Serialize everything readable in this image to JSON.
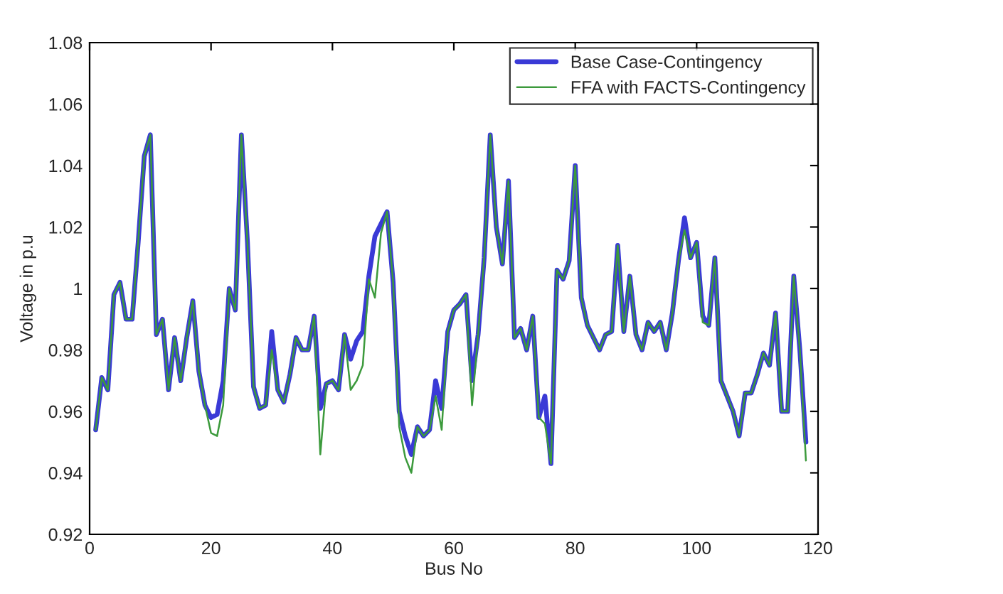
{
  "chart_data": {
    "type": "line",
    "xlabel": "Bus No",
    "ylabel": "Voltage in p.u",
    "x": [
      1,
      2,
      3,
      4,
      5,
      6,
      7,
      8,
      9,
      10,
      11,
      12,
      13,
      14,
      15,
      16,
      17,
      18,
      19,
      20,
      21,
      22,
      23,
      24,
      25,
      26,
      27,
      28,
      29,
      30,
      31,
      32,
      33,
      34,
      35,
      36,
      37,
      38,
      39,
      40,
      41,
      42,
      43,
      44,
      45,
      46,
      47,
      48,
      49,
      50,
      51,
      52,
      53,
      54,
      55,
      56,
      57,
      58,
      59,
      60,
      61,
      62,
      63,
      64,
      65,
      66,
      67,
      68,
      69,
      70,
      71,
      72,
      73,
      74,
      75,
      76,
      77,
      78,
      79,
      80,
      81,
      82,
      83,
      84,
      85,
      86,
      87,
      88,
      89,
      90,
      91,
      92,
      93,
      94,
      95,
      96,
      97,
      98,
      99,
      100,
      101,
      102,
      103,
      104,
      105,
      106,
      107,
      108,
      109,
      110,
      111,
      112,
      113,
      114,
      115,
      116,
      117,
      118
    ],
    "series": [
      {
        "name": "Base Case-Contingency",
        "color": "#3a3ad6",
        "values": [
          0.954,
          0.971,
          0.967,
          0.998,
          1.002,
          0.99,
          0.99,
          1.015,
          1.043,
          1.05,
          0.985,
          0.99,
          0.967,
          0.984,
          0.97,
          0.984,
          0.996,
          0.973,
          0.962,
          0.958,
          0.959,
          0.97,
          1.0,
          0.993,
          1.05,
          1.015,
          0.968,
          0.961,
          0.962,
          0.986,
          0.967,
          0.963,
          0.972,
          0.984,
          0.98,
          0.98,
          0.991,
          0.961,
          0.969,
          0.97,
          0.967,
          0.985,
          0.977,
          0.983,
          0.986,
          1.004,
          1.017,
          1.021,
          1.025,
          1.002,
          0.96,
          0.952,
          0.946,
          0.955,
          0.952,
          0.954,
          0.97,
          0.961,
          0.986,
          0.993,
          0.995,
          0.998,
          0.97,
          0.985,
          1.01,
          1.05,
          1.02,
          1.008,
          1.035,
          0.984,
          0.987,
          0.98,
          0.991,
          0.958,
          0.965,
          0.943,
          1.006,
          1.003,
          1.009,
          1.04,
          0.997,
          0.988,
          0.984,
          0.98,
          0.985,
          0.986,
          1.014,
          0.986,
          1.004,
          0.985,
          0.98,
          0.989,
          0.986,
          0.989,
          0.98,
          0.992,
          1.009,
          1.023,
          1.01,
          1.015,
          0.991,
          0.988,
          1.01,
          0.97,
          0.965,
          0.96,
          0.952,
          0.966,
          0.966,
          0.972,
          0.979,
          0.975,
          0.992,
          0.96,
          0.96,
          1.004,
          0.98,
          0.95
        ]
      },
      {
        "name": "FFA with FACTS-Contingency",
        "color": "#3c9a3c",
        "values": [
          0.954,
          0.971,
          0.967,
          0.998,
          1.002,
          0.99,
          0.99,
          1.015,
          1.043,
          1.05,
          0.985,
          0.99,
          0.967,
          0.984,
          0.97,
          0.984,
          0.996,
          0.973,
          0.962,
          0.953,
          0.952,
          0.962,
          1.0,
          0.993,
          1.05,
          1.015,
          0.968,
          0.961,
          0.962,
          0.98,
          0.967,
          0.963,
          0.972,
          0.984,
          0.98,
          0.98,
          0.991,
          0.946,
          0.969,
          0.97,
          0.967,
          0.985,
          0.967,
          0.97,
          0.975,
          1.003,
          0.997,
          1.018,
          1.025,
          1.002,
          0.955,
          0.945,
          0.94,
          0.955,
          0.952,
          0.954,
          0.965,
          0.954,
          0.986,
          0.993,
          0.995,
          0.998,
          0.962,
          0.985,
          1.01,
          1.05,
          1.02,
          1.008,
          1.035,
          0.984,
          0.987,
          0.98,
          0.991,
          0.958,
          0.956,
          0.943,
          1.006,
          1.003,
          1.009,
          1.04,
          0.997,
          0.988,
          0.984,
          0.98,
          0.985,
          0.986,
          1.014,
          0.986,
          1.004,
          0.985,
          0.98,
          0.989,
          0.986,
          0.989,
          0.98,
          0.992,
          1.009,
          1.019,
          1.01,
          1.015,
          0.989,
          0.988,
          1.01,
          0.97,
          0.965,
          0.96,
          0.952,
          0.966,
          0.966,
          0.972,
          0.979,
          0.975,
          0.992,
          0.96,
          0.96,
          1.004,
          0.98,
          0.944
        ]
      }
    ],
    "xlim": [
      0,
      120
    ],
    "xticks": [
      0,
      20,
      40,
      60,
      80,
      100,
      120
    ],
    "ylim": [
      0.92,
      1.08
    ],
    "yticks": [
      0.92,
      0.94,
      0.96,
      0.98,
      1,
      1.02,
      1.04,
      1.06,
      1.08
    ],
    "grid": false,
    "legend": "top right",
    "marker": "none",
    "line_style": "solid"
  }
}
